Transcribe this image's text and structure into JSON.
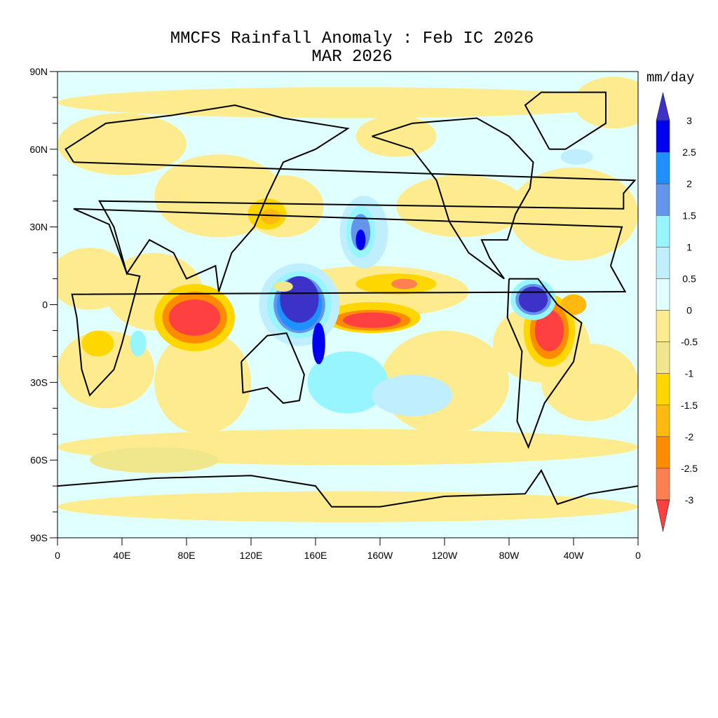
{
  "title": "MMCFS Rainfall Anomaly : Feb IC 2026",
  "subtitle": "MAR 2026",
  "colorbar": {
    "units": "mm/day",
    "labels": [
      "3",
      "2.5",
      "2",
      "1.5",
      "1",
      "0.5",
      "0",
      "-0.5",
      "-1",
      "-1.5",
      "-2",
      "-2.5",
      "-3"
    ],
    "colors": [
      "#3c32c8",
      "#0000f0",
      "#1e90ff",
      "#6495ed",
      "#97f5ff",
      "#bfefff",
      "#e0ffff",
      "#fdeb8e",
      "#f0e68c",
      "#ffd700",
      "#ffb90f",
      "#ff8c00",
      "#ff7f50",
      "#ff4040"
    ]
  },
  "axes": {
    "lat_labels": [
      "90N",
      "60N",
      "30N",
      "0",
      "30S",
      "60S",
      "90S"
    ],
    "lon_labels": [
      "0",
      "40E",
      "80E",
      "120E",
      "160E",
      "160W",
      "120W",
      "80W",
      "40W",
      "0"
    ]
  }
}
